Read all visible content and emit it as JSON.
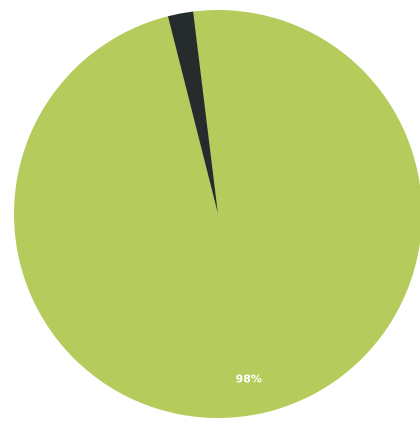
{
  "chart_data": {
    "type": "pie",
    "slices": [
      {
        "value": 98,
        "label": "98%",
        "color": "#b5cc5d"
      },
      {
        "value": 2,
        "label": "",
        "color": "#262b2c"
      }
    ],
    "start_angle_deg": -7,
    "direction": "clockwise"
  }
}
